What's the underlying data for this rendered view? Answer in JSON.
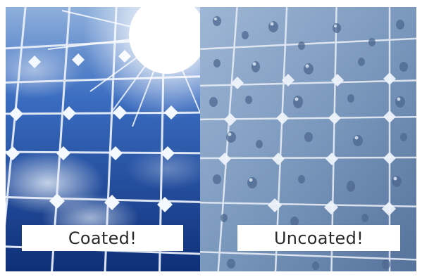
{
  "labels": {
    "coated": "Coated!",
    "uncoated": "Uncoated!"
  },
  "colors": {
    "panel_dark": "#123a8c",
    "panel_mid": "#2a5fb8",
    "sky_light": "#cfe0f4",
    "wet_panel": "#6f8fb5",
    "grid_line": "#e8eef8",
    "caption_text": "#2a2a2a"
  },
  "icons": {
    "sun_glare": "sun-glare",
    "water_droplets": "water-droplets"
  }
}
